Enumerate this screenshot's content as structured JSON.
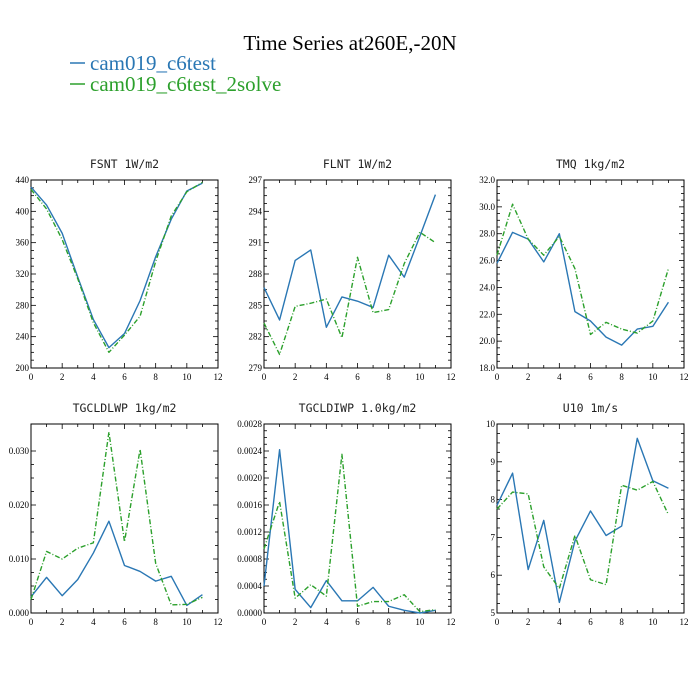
{
  "figure": {
    "title": "Time Series at260E,-20N"
  },
  "legend": [
    {
      "label": "cam019_c6test",
      "color": "#2a77b4",
      "dash": "solid"
    },
    {
      "label": "cam019_c6test_2solve",
      "color": "#2ca02c",
      "dash": "dashdot"
    }
  ],
  "chart_data": [
    {
      "type": "line",
      "title": "FSNT   1W/m2",
      "xlim": [
        0,
        12
      ],
      "ylim": [
        200,
        440
      ],
      "xticks": [
        0,
        2,
        4,
        6,
        8,
        10,
        12
      ],
      "xticklabels": [
        "0",
        "2",
        "4",
        "6",
        "8",
        "10",
        "12"
      ],
      "yticks": [
        200,
        240,
        280,
        320,
        360,
        400,
        440
      ],
      "yticklabels": [
        "200",
        "240",
        "280",
        "320",
        "360",
        "400",
        "440"
      ],
      "x": [
        0,
        1,
        2,
        3,
        4,
        5,
        6,
        7,
        8,
        9,
        10,
        11
      ],
      "series": [
        {
          "name": "cam019_c6test",
          "values": [
            431,
            408,
            372,
            316,
            262,
            226,
            244,
            286,
            342,
            390,
            426,
            436
          ]
        },
        {
          "name": "cam019_c6test_2solve",
          "values": [
            428,
            403,
            364,
            314,
            258,
            220,
            242,
            266,
            336,
            394,
            425,
            437
          ]
        }
      ]
    },
    {
      "type": "line",
      "title": "FLNT   1W/m2",
      "xlim": [
        0,
        12
      ],
      "ylim": [
        279,
        297
      ],
      "xticks": [
        0,
        2,
        4,
        6,
        8,
        10,
        12
      ],
      "xticklabels": [
        "0",
        "2",
        "4",
        "6",
        "8",
        "10",
        "12"
      ],
      "yticks": [
        279,
        282,
        285,
        288,
        291,
        294,
        297
      ],
      "yticklabels": [
        "279",
        "282",
        "285",
        "288",
        "291",
        "294",
        "297"
      ],
      "x": [
        0,
        1,
        2,
        3,
        4,
        5,
        6,
        7,
        8,
        9,
        10,
        11
      ],
      "series": [
        {
          "name": "cam019_c6test",
          "values": [
            286.7,
            283.6,
            289.3,
            290.3,
            282.9,
            285.8,
            285.4,
            284.8,
            289.8,
            287.7,
            291.6,
            295.6
          ]
        },
        {
          "name": "cam019_c6test_2solve",
          "values": [
            283.3,
            280.3,
            284.9,
            285.2,
            285.6,
            281.9,
            289.6,
            284.3,
            284.6,
            289.0,
            292.0,
            291.0
          ]
        }
      ]
    },
    {
      "type": "line",
      "title": "TMQ   1kg/m2",
      "xlim": [
        0,
        12
      ],
      "ylim": [
        18,
        32
      ],
      "xticks": [
        0,
        2,
        4,
        6,
        8,
        10,
        12
      ],
      "xticklabels": [
        "0",
        "2",
        "4",
        "6",
        "8",
        "10",
        "12"
      ],
      "yticks": [
        18,
        20,
        22,
        24,
        26,
        28,
        30,
        32
      ],
      "yticklabels": [
        "18.0",
        "20.0",
        "22.0",
        "24.0",
        "26.0",
        "28.0",
        "30.0",
        "32.0"
      ],
      "x": [
        0,
        1,
        2,
        3,
        4,
        5,
        6,
        7,
        8,
        9,
        10,
        11
      ],
      "series": [
        {
          "name": "cam019_c6test",
          "values": [
            25.8,
            28.1,
            27.6,
            25.9,
            28.0,
            22.2,
            21.5,
            20.3,
            19.7,
            20.9,
            21.1,
            22.9
          ]
        },
        {
          "name": "cam019_c6test_2solve",
          "values": [
            26.4,
            30.2,
            27.6,
            26.4,
            27.8,
            25.4,
            20.5,
            21.4,
            20.9,
            20.6,
            21.5,
            25.4
          ]
        }
      ]
    },
    {
      "type": "line",
      "title": "TGCLDLWP   1kg/m2",
      "xlim": [
        0,
        12
      ],
      "ylim": [
        0,
        0.035
      ],
      "xticks": [
        0,
        2,
        4,
        6,
        8,
        10,
        12
      ],
      "xticklabels": [
        "0",
        "2",
        "4",
        "6",
        "8",
        "10",
        "12"
      ],
      "yticks": [
        0,
        0.01,
        0.02,
        0.03
      ],
      "yticklabels": [
        "0.000",
        "0.010",
        "0.020",
        "0.030"
      ],
      "x": [
        0,
        1,
        2,
        3,
        4,
        5,
        6,
        7,
        8,
        9,
        10,
        11
      ],
      "series": [
        {
          "name": "cam019_c6test",
          "values": [
            0.003,
            0.0066,
            0.0032,
            0.0062,
            0.0111,
            0.017,
            0.0088,
            0.0077,
            0.0059,
            0.0068,
            0.0014,
            0.0034
          ]
        },
        {
          "name": "cam019_c6test_2solve",
          "values": [
            0.0025,
            0.0114,
            0.01,
            0.012,
            0.013,
            0.0335,
            0.0132,
            0.0303,
            0.0092,
            0.0015,
            0.0016,
            0.0029
          ]
        }
      ]
    },
    {
      "type": "line",
      "title": "TGCLDIWP   1.0kg/m2",
      "xlim": [
        0,
        12
      ],
      "ylim": [
        0,
        0.0028
      ],
      "xticks": [
        0,
        2,
        4,
        6,
        8,
        10,
        12
      ],
      "xticklabels": [
        "0",
        "2",
        "4",
        "6",
        "8",
        "10",
        "12"
      ],
      "yticks": [
        0,
        0.0004,
        0.0008,
        0.0012,
        0.0016,
        0.002,
        0.0024,
        0.0028
      ],
      "yticklabels": [
        "0.0000",
        "0.0004",
        "0.0008",
        "0.0012",
        "0.0016",
        "0.0020",
        "0.0024",
        "0.0028"
      ],
      "x": [
        0,
        1,
        2,
        3,
        4,
        5,
        6,
        7,
        8,
        9,
        10,
        11
      ],
      "series": [
        {
          "name": "cam019_c6test",
          "values": [
            0.0004,
            0.00242,
            0.00035,
            8e-05,
            0.00048,
            0.00018,
            0.00018,
            0.00038,
            0.0001,
            4e-05,
            0.0,
            4e-05
          ]
        },
        {
          "name": "cam019_c6test_2solve",
          "values": [
            0.00095,
            0.00165,
            0.00022,
            0.00042,
            0.00025,
            0.00235,
            0.0001,
            0.00017,
            0.00017,
            0.00027,
            2e-05,
            5e-05
          ]
        }
      ]
    },
    {
      "type": "line",
      "title": "U10   1m/s",
      "xlim": [
        0,
        12
      ],
      "ylim": [
        5,
        10
      ],
      "xticks": [
        0,
        2,
        4,
        6,
        8,
        10,
        12
      ],
      "xticklabels": [
        "0",
        "2",
        "4",
        "6",
        "8",
        "10",
        "12"
      ],
      "yticks": [
        5,
        6,
        7,
        8,
        9,
        10
      ],
      "yticklabels": [
        "5",
        "6",
        "7",
        "8",
        "9",
        "10"
      ],
      "x": [
        0,
        1,
        2,
        3,
        4,
        5,
        6,
        7,
        8,
        9,
        10,
        11
      ],
      "series": [
        {
          "name": "cam019_c6test",
          "values": [
            7.85,
            8.7,
            6.15,
            7.45,
            5.28,
            6.9,
            7.7,
            7.05,
            7.3,
            9.62,
            8.5,
            8.3
          ]
        },
        {
          "name": "cam019_c6test_2solve",
          "values": [
            7.75,
            8.2,
            8.15,
            6.22,
            5.65,
            7.05,
            5.88,
            5.75,
            8.38,
            8.25,
            8.48,
            7.6
          ]
        }
      ]
    }
  ]
}
